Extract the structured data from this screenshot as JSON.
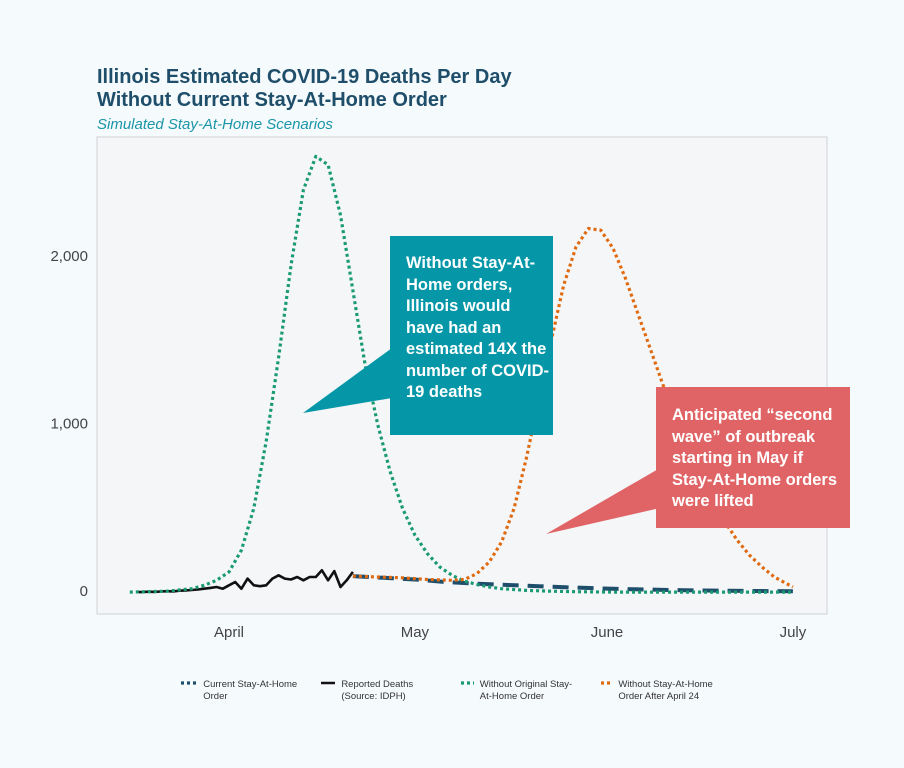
{
  "chart_data": {
    "type": "line",
    "title": "Illinois Estimated COVID-19 Deaths Per Day\nWithout Current Stay-At-Home Order",
    "subtitle": "Simulated Stay-At-Home Scenarios",
    "xlim": [
      -21.3,
      96.5
    ],
    "xticks": [
      {
        "value": 0,
        "label": "April"
      },
      {
        "value": 30,
        "label": "May"
      },
      {
        "value": 61,
        "label": "June"
      },
      {
        "value": 91,
        "label": "July"
      }
    ],
    "ylim": [
      -131,
      2716
    ],
    "yticks": [
      0,
      {
        "value": 1000,
        "label": "1,000"
      },
      {
        "value": 2000,
        "label": "2,000"
      }
    ],
    "grid": false,
    "series": [
      {
        "name": "Current Stay-At-Home Order",
        "color": "#1f4e6b",
        "dash": "dashed",
        "x": [
          20,
          25,
          30,
          35,
          40,
          45,
          50,
          55,
          60,
          65,
          70,
          75,
          80,
          85,
          91
        ],
        "values": [
          95,
          85,
          75,
          60,
          50,
          42,
          35,
          28,
          22,
          17,
          13,
          10,
          8,
          6,
          5
        ]
      },
      {
        "name": "Reported Deaths (Source: IDPH)",
        "color": "#111111",
        "dash": "solid",
        "x": [
          -15,
          -14,
          -13,
          -12,
          -11,
          -10,
          -9,
          -8,
          -7,
          -6,
          -5,
          -4,
          -3,
          -2,
          -1,
          0,
          1,
          2,
          3,
          4,
          5,
          6,
          7,
          8,
          9,
          10,
          11,
          12,
          13,
          14,
          15,
          16,
          17,
          18,
          19,
          20
        ],
        "values": [
          0,
          0,
          2,
          1,
          3,
          5,
          4,
          8,
          10,
          12,
          15,
          20,
          25,
          30,
          20,
          40,
          60,
          20,
          80,
          40,
          35,
          40,
          80,
          100,
          80,
          75,
          90,
          70,
          90,
          90,
          130,
          70,
          125,
          30,
          70,
          120
        ]
      },
      {
        "name": "Without Original Stay-At-Home Order",
        "color": "#1a9a73",
        "dash": "dotted",
        "x": [
          -16,
          -10,
          -6,
          -4,
          -2,
          0,
          2,
          4,
          6,
          8,
          10,
          12,
          14,
          16,
          18,
          20,
          22,
          24,
          26,
          28,
          30,
          32,
          34,
          36,
          38,
          40,
          42,
          44,
          48,
          52,
          56,
          62,
          70,
          80,
          91
        ],
        "values": [
          0,
          5,
          20,
          40,
          70,
          120,
          250,
          500,
          900,
          1400,
          1950,
          2400,
          2600,
          2550,
          2250,
          1800,
          1350,
          1000,
          720,
          500,
          340,
          230,
          150,
          100,
          65,
          45,
          30,
          20,
          10,
          5,
          2,
          0,
          0,
          0,
          0
        ]
      },
      {
        "name": "Without Stay-At-Home Order After April 24",
        "color": "#e06a10",
        "dash": "dotted",
        "x": [
          20,
          24,
          28,
          32,
          36,
          38,
          40,
          42,
          44,
          46,
          48,
          50,
          52,
          54,
          56,
          58,
          60,
          62,
          64,
          66,
          68,
          70,
          72,
          74,
          76,
          78,
          80,
          82,
          84,
          86,
          88,
          90,
          91
        ],
        "values": [
          95,
          90,
          85,
          75,
          70,
          75,
          110,
          180,
          300,
          500,
          800,
          1150,
          1500,
          1830,
          2060,
          2170,
          2160,
          2050,
          1870,
          1660,
          1450,
          1240,
          1040,
          860,
          700,
          550,
          420,
          310,
          220,
          150,
          90,
          50,
          30
        ]
      }
    ],
    "annotations": [
      {
        "text": "Without Stay-At-Home orders, Illinois would have had an estimated 14X the number of COVID-19 deaths",
        "color": "#0597a7"
      },
      {
        "text": "Anticipated “second wave” of outbreak starting in May if Stay-At-Home orders were lifted",
        "color": "#e06466"
      }
    ]
  }
}
